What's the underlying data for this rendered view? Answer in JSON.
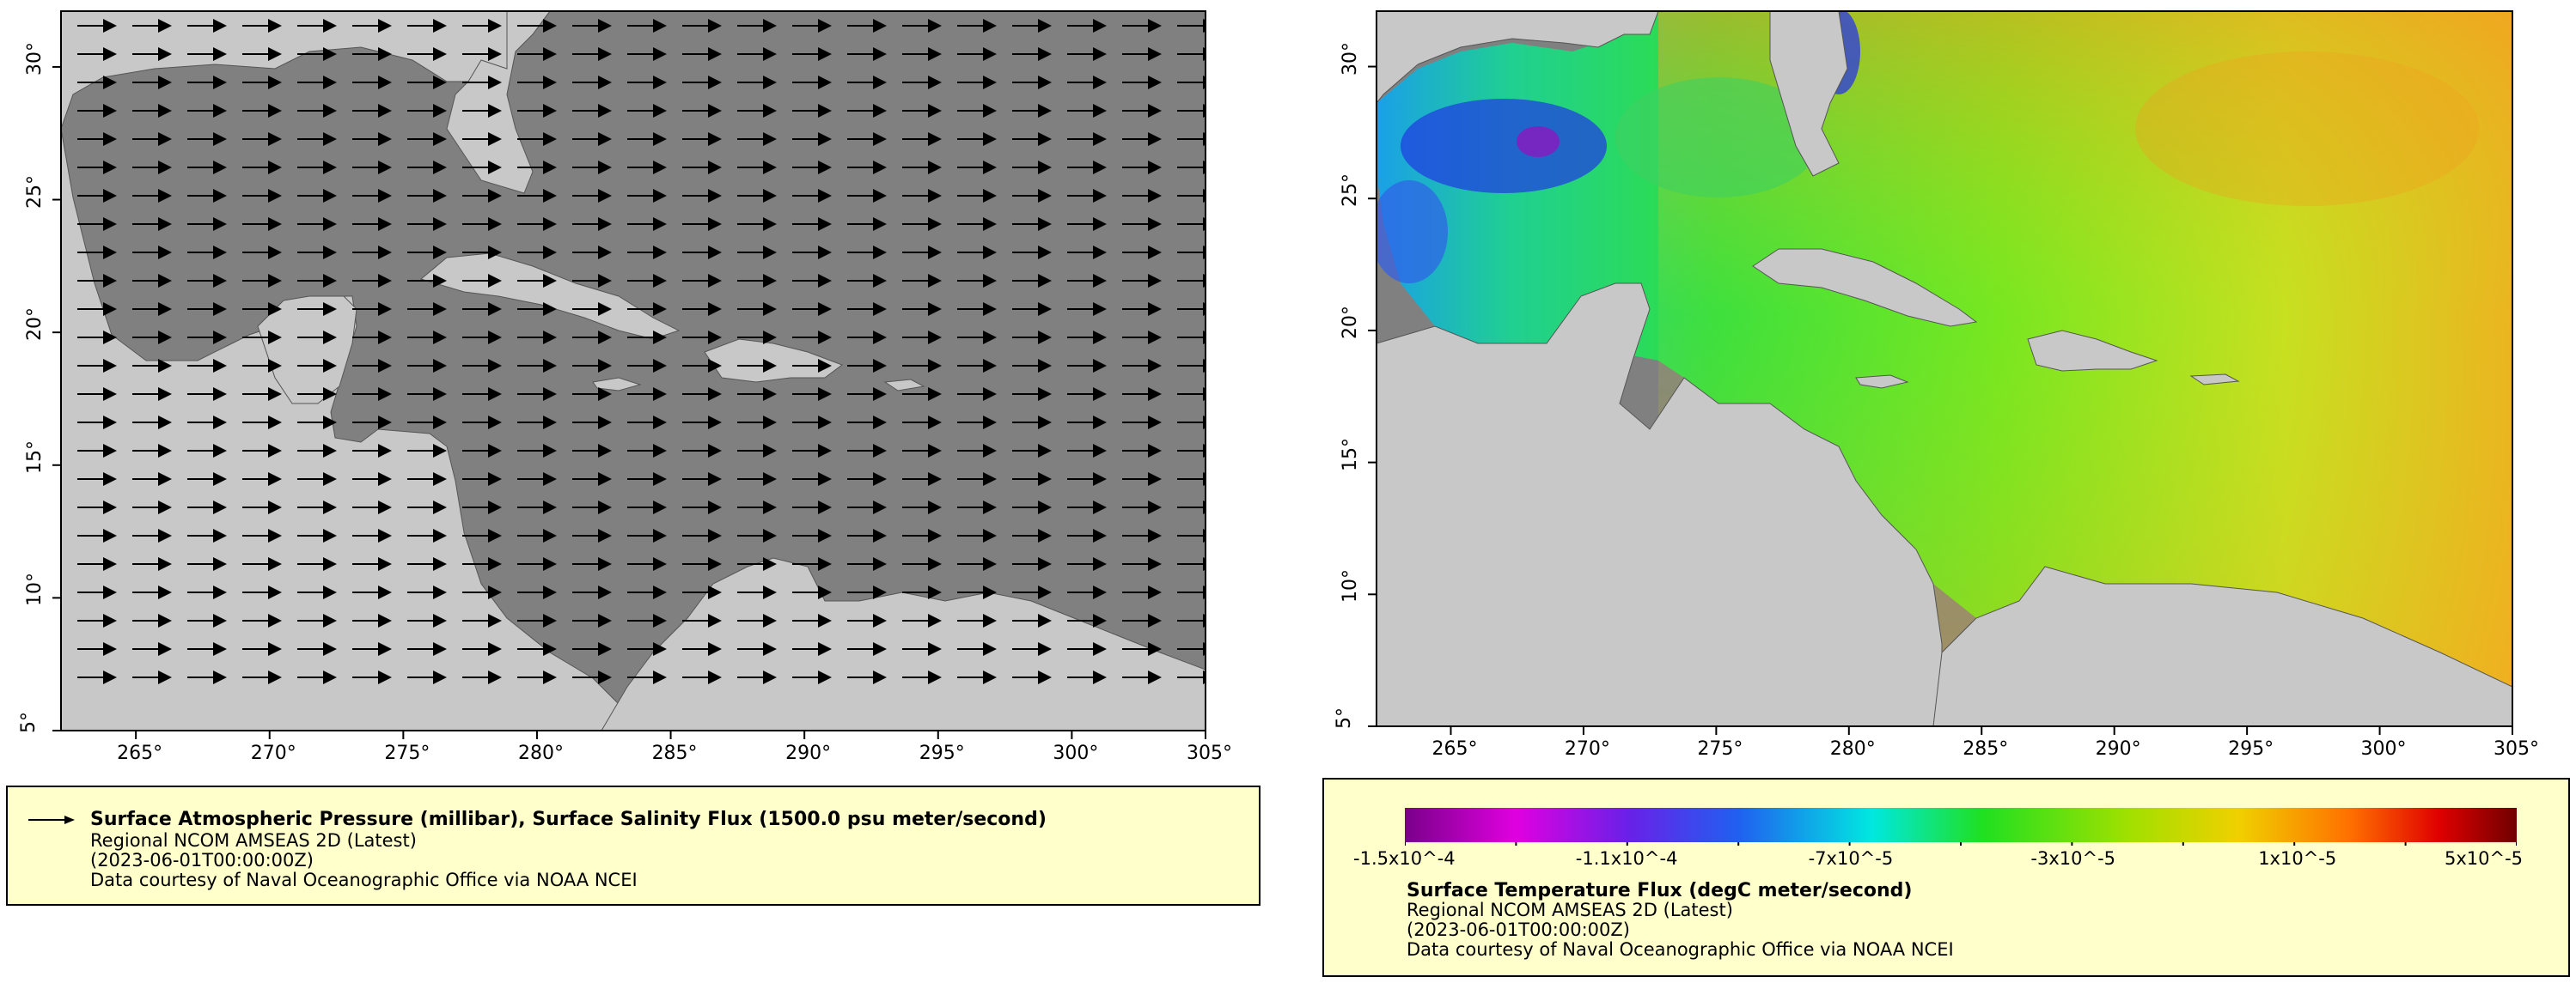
{
  "left_map": {
    "x_ticks": [
      "265°",
      "270°",
      "275°",
      "280°",
      "285°",
      "290°",
      "295°",
      "300°",
      "305°"
    ],
    "y_ticks": [
      "30°",
      "25°",
      "20°",
      "15°",
      "10°",
      "5°"
    ],
    "legend": {
      "title": "Surface Atmospheric Pressure (millibar), Surface Salinity Flux (1500.0 psu meter/second)",
      "line2": "Regional NCOM AMSEAS 2D (Latest)",
      "line3": "(2023-06-01T00:00:00Z)",
      "line4": "Data courtesy of Naval Oceanographic Office via NOAA NCEI"
    }
  },
  "right_map": {
    "x_ticks": [
      "265°",
      "270°",
      "275°",
      "280°",
      "285°",
      "290°",
      "295°",
      "300°",
      "305°"
    ],
    "y_ticks": [
      "30°",
      "25°",
      "20°",
      "15°",
      "10°",
      "5°"
    ],
    "colorbar_labels": [
      "-1.5x10^-4",
      "-1.1x10^-4",
      "-7x10^-5",
      "-3x10^-5",
      "1x10^-5",
      "5x10^-5"
    ],
    "legend": {
      "title": "Surface Temperature Flux (degC meter/second)",
      "line2": "Regional NCOM AMSEAS 2D (Latest)",
      "line3": "(2023-06-01T00:00:00Z)",
      "line4": "Data courtesy of Naval Oceanographic Office via NOAA NCEI"
    }
  },
  "colors": {
    "land": "#c8c8c8",
    "ocean_nodata": "#808080",
    "legend_bg": "#ffffcc",
    "rivers": "#6f9fd8"
  }
}
